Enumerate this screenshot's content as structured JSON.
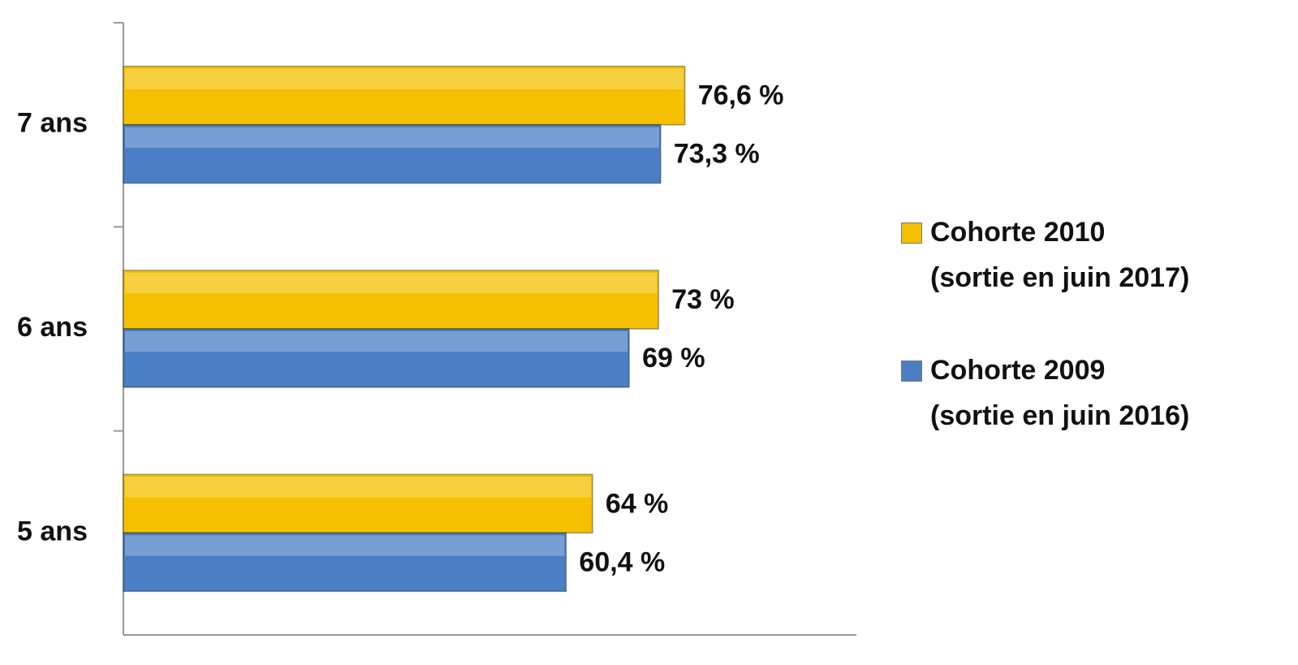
{
  "chart_data": {
    "type": "hbar",
    "categories": [
      "7 ans",
      "6 ans",
      "5 ans"
    ],
    "series": [
      {
        "name": "Cohorte 2010\n(sortie en juin 2017)",
        "color": "#f5c000",
        "values": [
          76.6,
          73,
          64
        ],
        "value_labels": [
          "76,6 %",
          "73 %",
          "64 %"
        ]
      },
      {
        "name": "Cohorte 2009\n(sortie en juin 2016)",
        "color": "#4a7fc6",
        "values": [
          73.3,
          69,
          60.4
        ],
        "value_labels": [
          "73,3 %",
          "69 %",
          "60,4 %"
        ]
      }
    ],
    "xlim": [
      0,
      100
    ],
    "legend": "right"
  }
}
